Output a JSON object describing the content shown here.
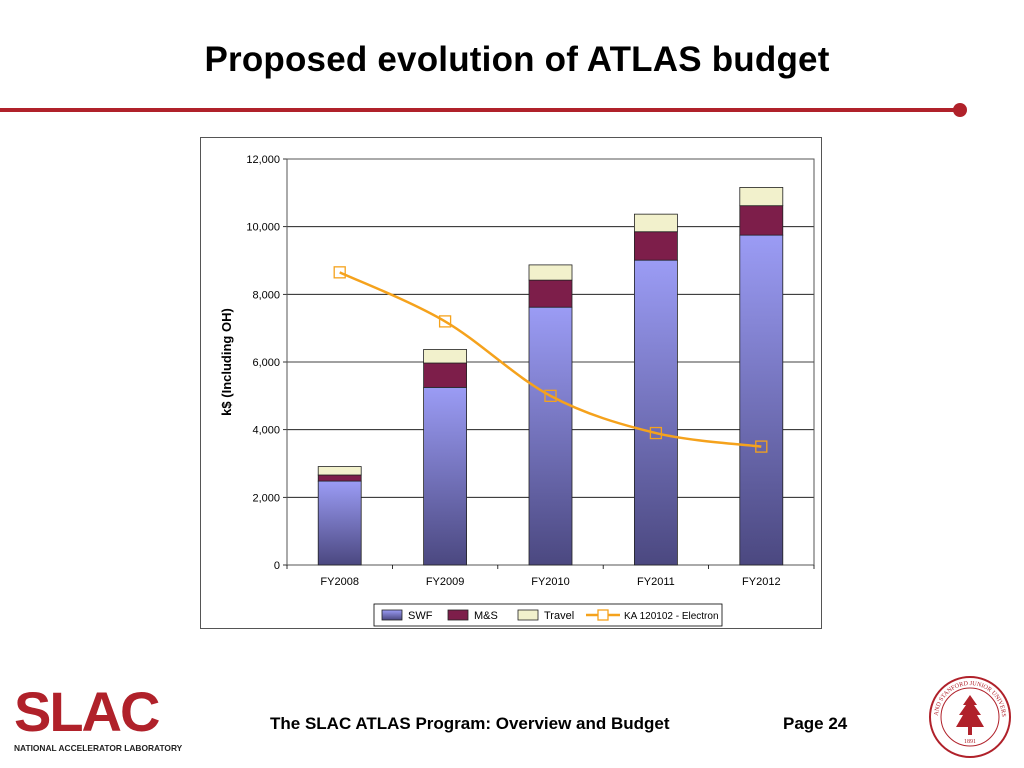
{
  "slide": {
    "title": "Proposed evolution of ATLAS budget",
    "footer_title": "The SLAC ATLAS Program: Overview and Budget",
    "page_label": "Page 24"
  },
  "logo": {
    "text": "SLAC",
    "subtitle": "NATIONAL ACCELERATOR LABORATORY",
    "color": "#b0212a"
  },
  "seal": {
    "text": "LELAND STANFORD JUNIOR UNIVERSITY",
    "year": "1891",
    "color": "#b0212a"
  },
  "colors": {
    "accent": "#b0212a",
    "swf": "#9b9cf5",
    "swf_dark": "#4b4880",
    "ms": "#7d1e4a",
    "travel": "#f2f1cc",
    "line": "#f5a21c"
  },
  "chart_data": {
    "type": "bar",
    "stacked": true,
    "categories": [
      "FY2008",
      "FY2009",
      "FY2010",
      "FY2011",
      "FY2012"
    ],
    "series": [
      {
        "name": "SWF",
        "type": "bar",
        "values": [
          2480,
          5250,
          7620,
          9010,
          9750
        ]
      },
      {
        "name": "M&S",
        "type": "bar",
        "values": [
          180,
          720,
          800,
          840,
          870
        ]
      },
      {
        "name": "Travel",
        "type": "bar",
        "values": [
          250,
          400,
          450,
          520,
          540
        ]
      },
      {
        "name": "KA 120102 - Electron",
        "type": "line",
        "marker": "square",
        "values": [
          8650,
          7200,
          5000,
          3900,
          3500
        ]
      }
    ],
    "ylabel": "k$ (Including OH)",
    "xlabel": "",
    "ylim": [
      0,
      12000
    ],
    "yticks": [
      0,
      2000,
      4000,
      6000,
      8000,
      10000,
      12000
    ],
    "ytick_labels": [
      "0",
      "2,000",
      "4,000",
      "6,000",
      "8,000",
      "10,000",
      "12,000"
    ],
    "grid": true,
    "legend": "bottom"
  }
}
